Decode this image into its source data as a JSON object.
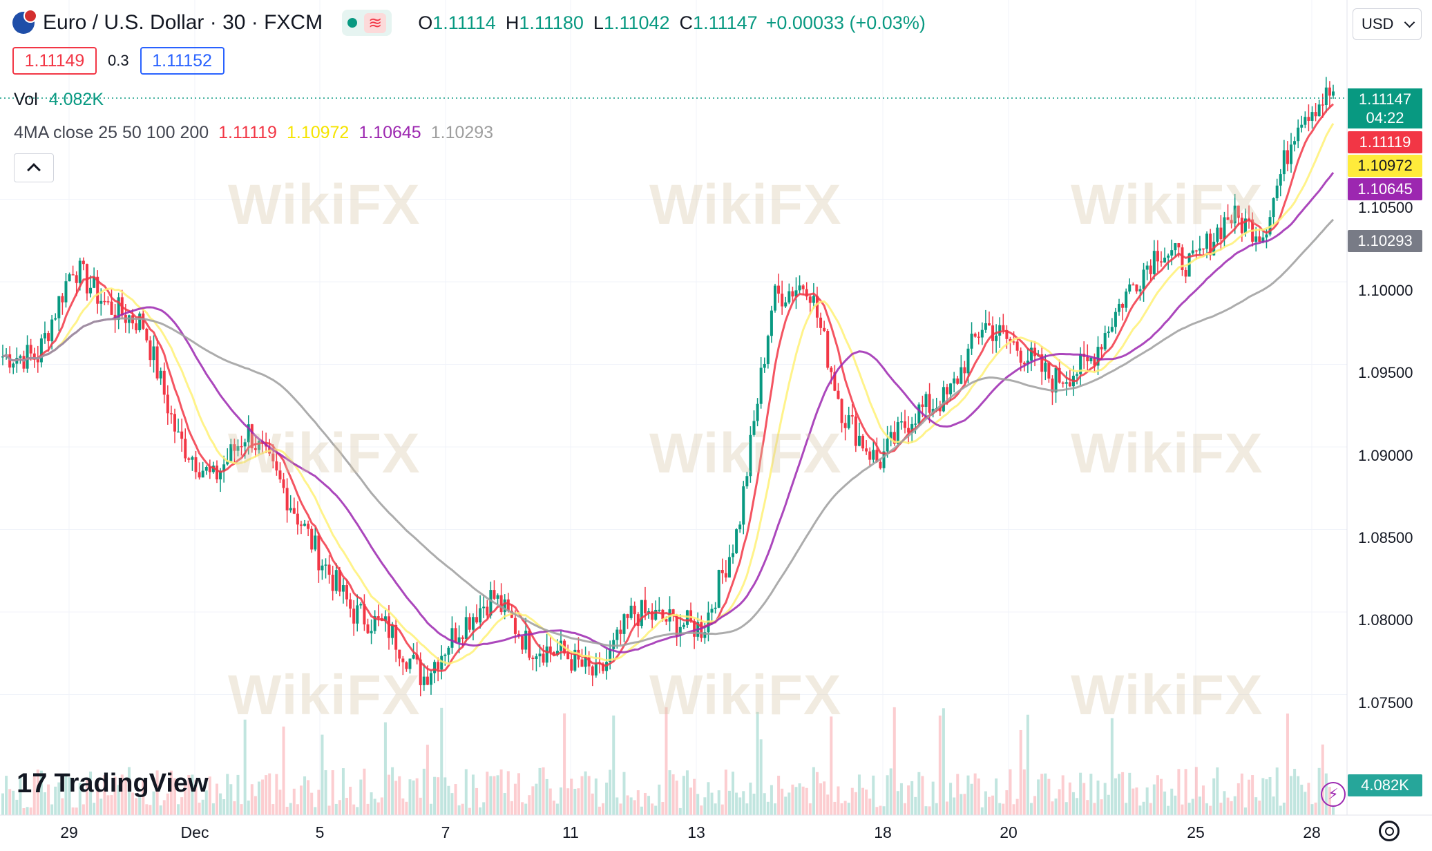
{
  "header": {
    "symbol": "Euro / U.S. Dollar · 30 · FXCM",
    "ohlc": [
      {
        "k": "O",
        "v": "1.11114"
      },
      {
        "k": "H",
        "v": "1.11180"
      },
      {
        "k": "L",
        "v": "1.11042"
      },
      {
        "k": "C",
        "v": "1.11147"
      }
    ],
    "change": "+0.00033 (+0.03%)",
    "sell_price": "1.11149",
    "spread": "0.3",
    "buy_price": "1.11152",
    "currency": "USD"
  },
  "indicators": {
    "vol_label": "Vol",
    "vol_value": "4.082K",
    "ma_label": "4MA close 25 50 100 200",
    "ma_values": [
      "1.11119",
      "1.10972",
      "1.10645",
      "1.10293"
    ],
    "ma_colors": [
      "#f23645",
      "#ffeb3b",
      "#9c27b0",
      "#9e9e9e"
    ]
  },
  "price_scale": {
    "ticks": [
      "1.10500",
      "1.10000",
      "1.09500",
      "1.09000",
      "1.08500",
      "1.08000",
      "1.07500"
    ],
    "current": "1.11147",
    "countdown": "04:22",
    "ma_tags": [
      "1.11119",
      "1.10972",
      "1.10645",
      "1.10293"
    ],
    "vol_tag": "4.082K"
  },
  "time_scale": [
    "29",
    "Dec",
    "5",
    "7",
    "11",
    "13",
    "18",
    "20",
    "25",
    "28"
  ],
  "branding": "TradingView",
  "watermark": "WikiFX",
  "colors": {
    "up": "#089981",
    "down": "#f23645",
    "accent": "#2962ff"
  },
  "chart_data": {
    "type": "line",
    "description_series": [
      {
        "name": "25",
        "color": "#f23645"
      },
      {
        "name": "50",
        "color": "#ffeb3b"
      },
      {
        "name": "100",
        "color": "#9c27b0"
      },
      {
        "name": "200",
        "color": "#9e9e9e"
      }
    ],
    "x": [
      "29",
      "Dec",
      "5",
      "7",
      "11",
      "13",
      "18",
      "20",
      "25",
      "28"
    ],
    "price_close_path": [
      1.0955,
      1.0955,
      1.101,
      1.0985,
      1.0975,
      1.0905,
      1.088,
      1.091,
      1.0875,
      1.0835,
      1.08,
      1.079,
      1.076,
      1.079,
      1.081,
      1.078,
      1.0775,
      1.076,
      1.08,
      1.0795,
      1.079,
      1.085,
      1.099,
      1.1,
      1.092,
      1.089,
      1.092,
      1.093,
      1.0975,
      1.096,
      1.094,
      1.095,
      1.099,
      1.102,
      1.101,
      1.104,
      1.103,
      1.11,
      1.1115
    ],
    "ylim": [
      1.072,
      1.114
    ],
    "y_ticks": [
      1.105,
      1.1,
      1.095,
      1.09,
      1.085,
      1.08,
      1.075
    ]
  }
}
